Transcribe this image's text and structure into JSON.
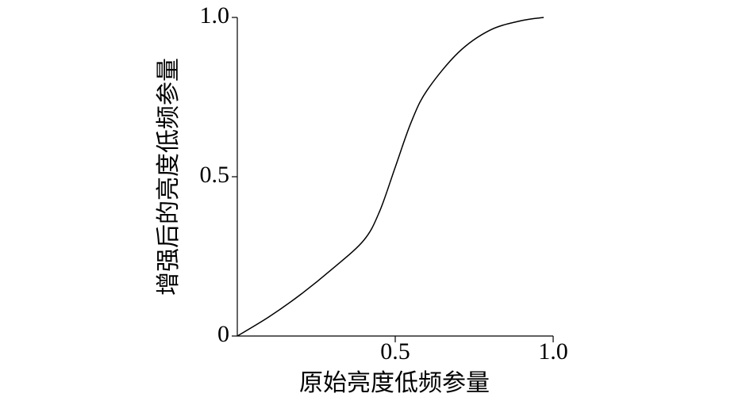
{
  "chart_data": {
    "type": "line",
    "x_label": "原始亮度低频参量",
    "y_label": "增强后的亮度低频参量",
    "x": [
      0,
      0.1,
      0.2,
      0.3,
      0.4,
      0.45,
      0.5,
      0.55,
      0.6,
      0.7,
      0.8,
      0.9,
      0.97
    ],
    "values": [
      0,
      0.06,
      0.13,
      0.21,
      0.3,
      0.39,
      0.53,
      0.67,
      0.77,
      0.89,
      0.96,
      0.99,
      1.0
    ],
    "color": "#000000",
    "xlim": [
      0,
      1
    ],
    "ylim": [
      0,
      1
    ],
    "xticks": [
      0.5,
      {
        "value": 1,
        "label": "1.0"
      }
    ],
    "yticks": [
      0,
      0.5,
      {
        "value": 1,
        "label": "1.0"
      }
    ]
  }
}
